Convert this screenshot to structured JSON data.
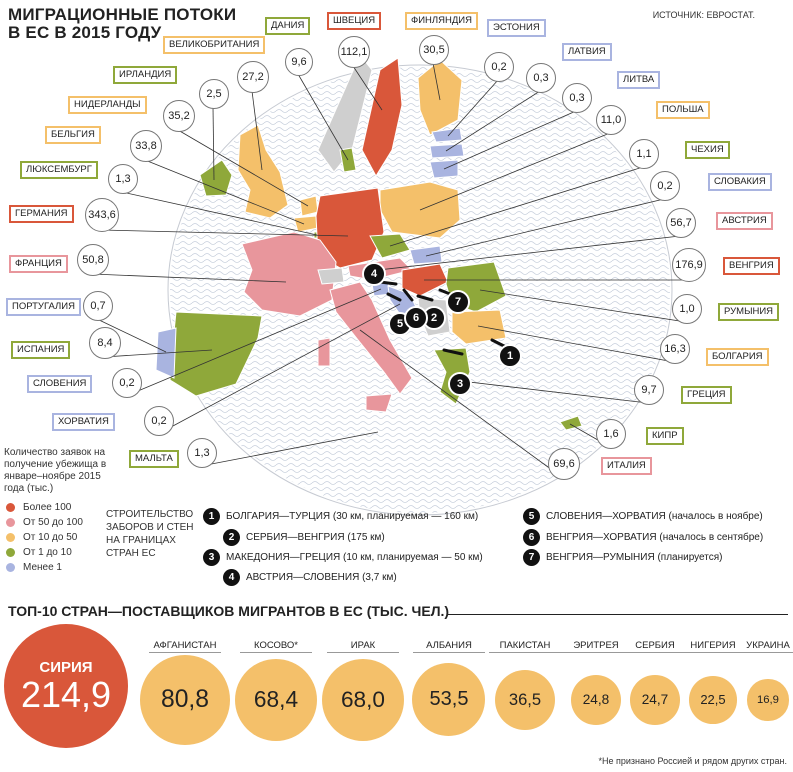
{
  "header": {
    "title_line1": "МИГРАЦИОННЫЕ ПОТОКИ",
    "title_line2": "В ЕС В 2015 ГОДУ",
    "source": "ИСТОЧНИК: ЕВРОСТАТ."
  },
  "legend": {
    "caption": "Количество заявок на получение убежища в январе–ноябре 2015 года (тыс.)",
    "items": [
      {
        "label": "Более 100",
        "color": "#d9573a"
      },
      {
        "label": "От 50 до 100",
        "color": "#e8969c"
      },
      {
        "label": "От 10 до 50",
        "color": "#f4c06a"
      },
      {
        "label": "От 1 до 10",
        "color": "#8fa83a"
      },
      {
        "label": "Менее 1",
        "color": "#a9b4e0"
      }
    ]
  },
  "walls": {
    "title": "СТРОИТЕЛЬСТВО ЗАБОРОВ И СТЕН НА ГРАНИЦАХ СТРАН ЕС",
    "items": [
      {
        "num": "1",
        "text": "БОЛГАРИЯ—ТУРЦИЯ (30 км, планируемая — 160 км)"
      },
      {
        "num": "2",
        "text": "СЕРБИЯ—ВЕНГРИЯ (175 км)"
      },
      {
        "num": "3",
        "text": "МАКЕДОНИЯ—ГРЕЦИЯ (10 км, планируемая — 50 км)"
      },
      {
        "num": "4",
        "text": "АВСТРИЯ—СЛОВЕНИЯ (3,7 км)"
      },
      {
        "num": "5",
        "text": "СЛОВЕНИЯ—ХОРВАТИЯ (началось в ноябре)"
      },
      {
        "num": "6",
        "text": "ВЕНГРИЯ—ХОРВАТИЯ (началось в сентябре)"
      },
      {
        "num": "7",
        "text": "ВЕНГРИЯ—РУМЫНИЯ (планируется)"
      }
    ]
  },
  "chart_data": [
    {
      "type": "map",
      "unit": "тыс.",
      "countries": [
        {
          "name": "ДАНИЯ",
          "value": "9,6",
          "num": 9.6,
          "category": "От 1 до 10"
        },
        {
          "name": "ШВЕЦИЯ",
          "value": "112,1",
          "num": 112.1,
          "category": "Более 100"
        },
        {
          "name": "ФИНЛЯНДИЯ",
          "value": "30,5",
          "num": 30.5,
          "category": "От 10 до 50"
        },
        {
          "name": "ЭСТОНИЯ",
          "value": "0,2",
          "num": 0.2,
          "category": "Менее 1"
        },
        {
          "name": "ВЕЛИКОБРИТАНИЯ",
          "value": "27,2",
          "num": 27.2,
          "category": "От 10 до 50"
        },
        {
          "name": "ИРЛАНДИЯ",
          "value": "2,5",
          "num": 2.5,
          "category": "От 1 до 10"
        },
        {
          "name": "НИДЕРЛАНДЫ",
          "value": "35,2",
          "num": 35.2,
          "category": "От 10 до 50"
        },
        {
          "name": "ЛАТВИЯ",
          "value": "0,3",
          "num": 0.3,
          "category": "Менее 1"
        },
        {
          "name": "ЛИТВА",
          "value": "0,3",
          "num": 0.3,
          "category": "Менее 1"
        },
        {
          "name": "ПОЛЬША",
          "value": "11,0",
          "num": 11.0,
          "category": "От 10 до 50"
        },
        {
          "name": "БЕЛЬГИЯ",
          "value": "33,8",
          "num": 33.8,
          "category": "От 10 до 50"
        },
        {
          "name": "ЧЕХИЯ",
          "value": "1,1",
          "num": 1.1,
          "category": "От 1 до 10"
        },
        {
          "name": "ЛЮКСЕМБУРГ",
          "value": "1,3",
          "num": 1.3,
          "category": "От 1 до 10"
        },
        {
          "name": "СЛОВАКИЯ",
          "value": "0,2",
          "num": 0.2,
          "category": "Менее 1"
        },
        {
          "name": "ГЕРМАНИЯ",
          "value": "343,6",
          "num": 343.6,
          "category": "Более 100"
        },
        {
          "name": "АВСТРИЯ",
          "value": "56,7",
          "num": 56.7,
          "category": "От 50 до 100"
        },
        {
          "name": "ФРАНЦИЯ",
          "value": "50,8",
          "num": 50.8,
          "category": "От 50 до 100"
        },
        {
          "name": "ВЕНГРИЯ",
          "value": "176,9",
          "num": 176.9,
          "category": "Более 100"
        },
        {
          "name": "ПОРТУГАЛИЯ",
          "value": "0,7",
          "num": 0.7,
          "category": "Менее 1"
        },
        {
          "name": "РУМЫНИЯ",
          "value": "1,0",
          "num": 1.0,
          "category": "От 1 до 10"
        },
        {
          "name": "ИСПАНИЯ",
          "value": "8,4",
          "num": 8.4,
          "category": "От 1 до 10"
        },
        {
          "name": "БОЛГАРИЯ",
          "value": "16,3",
          "num": 16.3,
          "category": "От 10 до 50"
        },
        {
          "name": "СЛОВЕНИЯ",
          "value": "0,2",
          "num": 0.2,
          "category": "Менее 1"
        },
        {
          "name": "ГРЕЦИЯ",
          "value": "9,7",
          "num": 9.7,
          "category": "От 1 до 10"
        },
        {
          "name": "ХОРВАТИЯ",
          "value": "0,2",
          "num": 0.2,
          "category": "Менее 1"
        },
        {
          "name": "КИПР",
          "value": "1,6",
          "num": 1.6,
          "category": "От 1 до 10"
        },
        {
          "name": "МАЛЬТА",
          "value": "1,3",
          "num": 1.3,
          "category": "От 1 до 10"
        },
        {
          "name": "ИТАЛИЯ",
          "value": "69,6",
          "num": 69.6,
          "category": "От 50 до 100"
        }
      ]
    },
    {
      "type": "bubble",
      "title": "ТОП-10 СТРАН—ПОСТАВЩИКОВ МИГРАНТОВ В ЕС (ТЫС. ЧЕЛ.)",
      "categories": [
        "СИРИЯ",
        "АФГАНИСТАН",
        "КОСОВО*",
        "ИРАК",
        "АЛБАНИЯ",
        "ПАКИСТАН",
        "ЭРИТРЕЯ",
        "СЕРБИЯ",
        "НИГЕРИЯ",
        "УКРАИНА"
      ],
      "labels": [
        "214,9",
        "80,8",
        "68,4",
        "68,0",
        "53,5",
        "36,5",
        "24,8",
        "24,7",
        "22,5",
        "16,9"
      ],
      "values": [
        214.9,
        80.8,
        68.4,
        68.0,
        53.5,
        36.5,
        24.8,
        24.7,
        22.5,
        16.9
      ]
    }
  ],
  "footnote": "*Не признано Россией и рядом других стран."
}
